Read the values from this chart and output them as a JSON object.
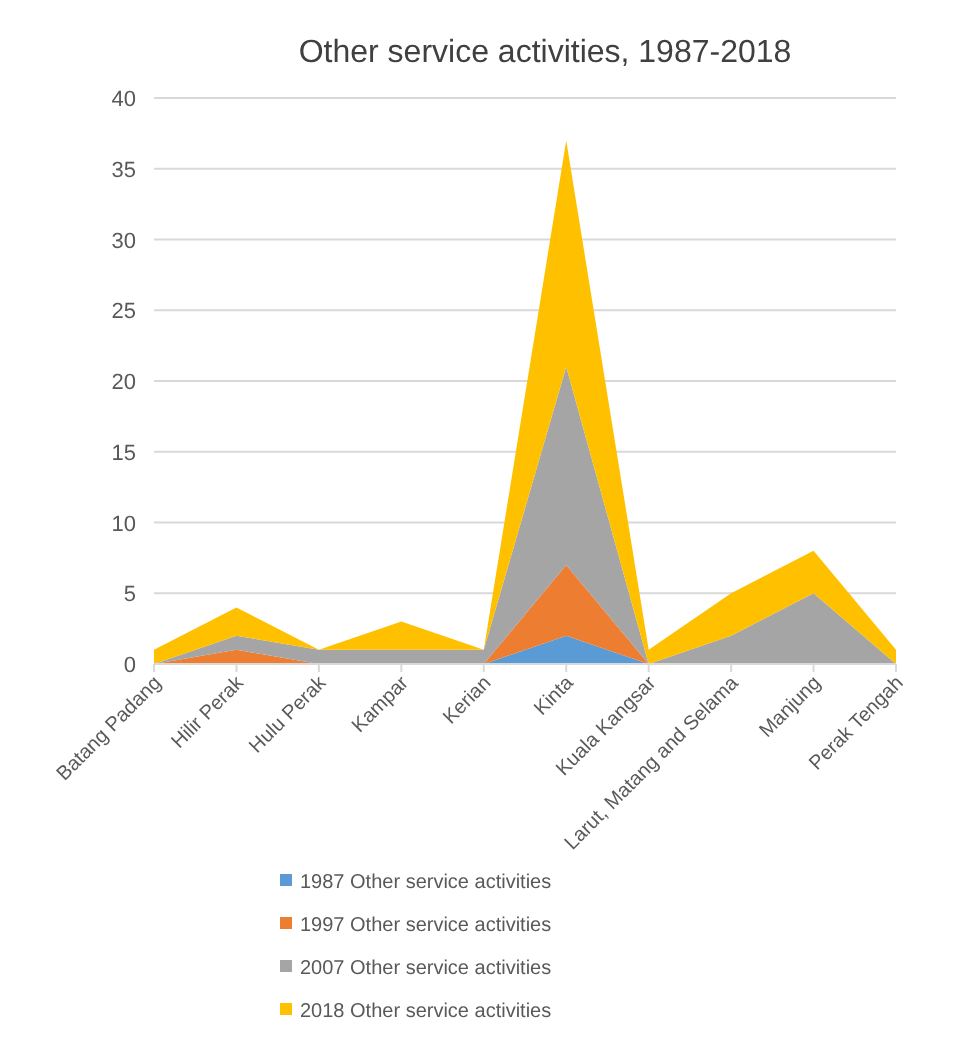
{
  "chart_data": {
    "type": "area",
    "title": "Other service activities, 1987-2018",
    "stacked": true,
    "categories": [
      "Batang Padang",
      "Hilir Perak",
      "Hulu Perak",
      "Kampar",
      "Kerian",
      "Kinta",
      "Kuala Kangsar",
      "Larut, Matang and Selama",
      "Manjung",
      "Perak Tengah"
    ],
    "series": [
      {
        "name": "1987 Other service activities",
        "color": "#5b9bd5",
        "values": [
          0,
          0,
          0,
          0,
          0,
          2,
          0,
          0,
          0,
          0
        ]
      },
      {
        "name": "1997 Other service activities",
        "color": "#ed7d31",
        "values": [
          0,
          1,
          0,
          0,
          0,
          5,
          0,
          0,
          0,
          0
        ]
      },
      {
        "name": "2007 Other service activities",
        "color": "#a5a5a5",
        "values": [
          0,
          1,
          1,
          1,
          1,
          14,
          0,
          2,
          5,
          0
        ]
      },
      {
        "name": "2018 Other service activities",
        "color": "#ffc000",
        "values": [
          1,
          2,
          0,
          2,
          0,
          16,
          1,
          3,
          3,
          1
        ]
      }
    ],
    "ylim": [
      0,
      40
    ],
    "yticks": [
      0,
      5,
      10,
      15,
      20,
      25,
      30,
      35,
      40
    ],
    "grid": "y",
    "legend": "bottom"
  }
}
